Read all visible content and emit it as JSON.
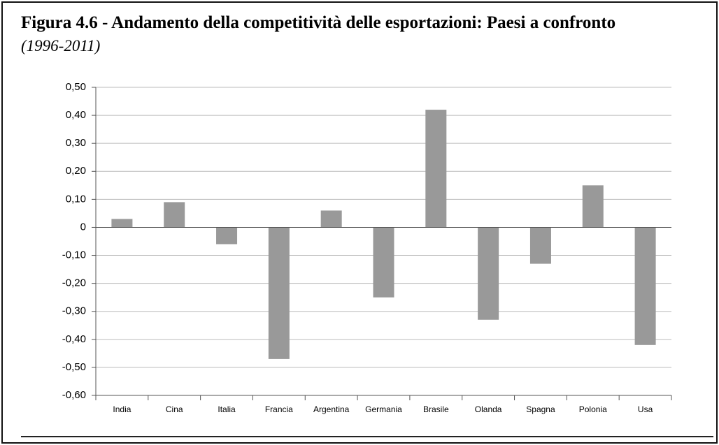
{
  "chart_data": {
    "type": "bar",
    "title": "Figura 4.6 - Andamento della competitività delle esportazioni: Paesi a confronto",
    "subtitle": "(1996-2011)",
    "categories": [
      "India",
      "Cina",
      "Italia",
      "Francia",
      "Argentina",
      "Germania",
      "Brasile",
      "Olanda",
      "Spagna",
      "Polonia",
      "Usa"
    ],
    "values": [
      0.03,
      0.09,
      -0.06,
      -0.47,
      0.06,
      -0.25,
      0.42,
      -0.33,
      -0.13,
      0.15,
      -0.42
    ],
    "color": "#999999",
    "ylim": [
      -0.6,
      0.5
    ],
    "yticks": [
      {
        "value": 0.5,
        "label": "0,50"
      },
      {
        "value": 0.4,
        "label": "0,40"
      },
      {
        "value": 0.3,
        "label": "0,30"
      },
      {
        "value": 0.2,
        "label": "0,20"
      },
      {
        "value": 0.1,
        "label": "0,10"
      },
      0,
      {
        "value": -0.1,
        "label": "-0,10"
      },
      {
        "value": -0.2,
        "label": "-0,20"
      },
      {
        "value": -0.3,
        "label": "-0,30"
      },
      {
        "value": -0.4,
        "label": "-0,40"
      },
      {
        "value": -0.5,
        "label": "-0,50"
      },
      {
        "value": -0.6,
        "label": "-0,60"
      }
    ],
    "grid": true
  }
}
